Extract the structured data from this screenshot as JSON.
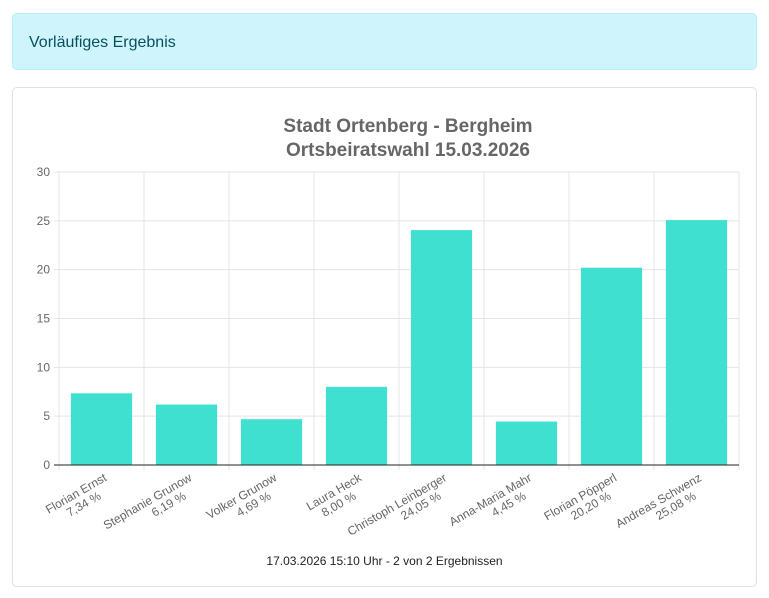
{
  "alert": {
    "text": "Vorläufiges Ergebnis"
  },
  "footer": {
    "text": "17.03.2026 15:10 Uhr - 2 von 2 Ergebnissen"
  },
  "colors": {
    "bar": "#40e0d0",
    "grid": "#e5e5e5",
    "axis": "#222222",
    "text": "#666666"
  },
  "chart_data": {
    "type": "bar",
    "title": [
      "Stadt Ortenberg - Bergheim",
      "Ortsbeiratswahl 15.03.2026"
    ],
    "categories": [
      [
        "Florian Ernst",
        "7,34 %"
      ],
      [
        "Stephanie Grunow",
        "6,19 %"
      ],
      [
        "Volker Grunow",
        "4,69 %"
      ],
      [
        "Laura Heck",
        "8,00 %"
      ],
      [
        "Christoph Leinberger",
        "24,05 %"
      ],
      [
        "Anna-Maria Mahr",
        "4,45 %"
      ],
      [
        "Florian Pöpperl",
        "20,20 %"
      ],
      [
        "Andreas Schwenz",
        "25,08 %"
      ]
    ],
    "values": [
      7.34,
      6.19,
      4.69,
      8.0,
      24.05,
      4.45,
      20.2,
      25.08
    ],
    "ylim": [
      0,
      30
    ],
    "yticks": [
      "0",
      "5",
      "10",
      "15",
      "20",
      "25",
      "30"
    ],
    "grid": true,
    "legend": "none"
  }
}
